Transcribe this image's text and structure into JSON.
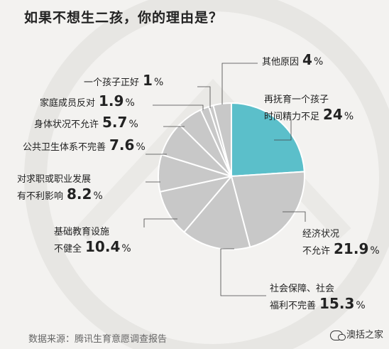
{
  "title": "如果不想生二孩，你的理由是？",
  "source": "数据来源：腾讯生育意愿调查报告",
  "watermark": "澳括之家",
  "colors": {
    "background": "#f3f2f0",
    "highlight_slice": "#5bbfca",
    "slice": "#c8c8c8",
    "leader": "#444444",
    "text": "#222222"
  },
  "chart_data": {
    "type": "pie",
    "title": "如果不想生二孩，你的理由是？",
    "unit": "%",
    "slices": [
      {
        "label_lines": [
          "再抚育一个孩子",
          "时间精力不足"
        ],
        "value": 24,
        "value_text": "24",
        "highlight": true
      },
      {
        "label_lines": [
          "经济状况",
          "不允许"
        ],
        "value": 21.9,
        "value_text": "21.9"
      },
      {
        "label_lines": [
          "社会保障、社会",
          "福利不完善"
        ],
        "value": 15.3,
        "value_text": "15.3"
      },
      {
        "label_lines": [
          "基础教育设施",
          "不健全"
        ],
        "value": 10.4,
        "value_text": "10.4"
      },
      {
        "label_lines": [
          "对求职或职业发展",
          "有不利影响"
        ],
        "value": 8.2,
        "value_text": "8.2"
      },
      {
        "label_lines": [
          "公共卫生体系不完善"
        ],
        "value": 7.6,
        "value_text": "7.6"
      },
      {
        "label_lines": [
          "身体状况不允许"
        ],
        "value": 5.7,
        "value_text": "5.7"
      },
      {
        "label_lines": [
          "家庭成员反对"
        ],
        "value": 1.9,
        "value_text": "1.9"
      },
      {
        "label_lines": [
          "一个孩子正好"
        ],
        "value": 1,
        "value_text": "1"
      },
      {
        "label_lines": [
          "其他原因"
        ],
        "value": 4,
        "value_text": "4"
      }
    ]
  }
}
